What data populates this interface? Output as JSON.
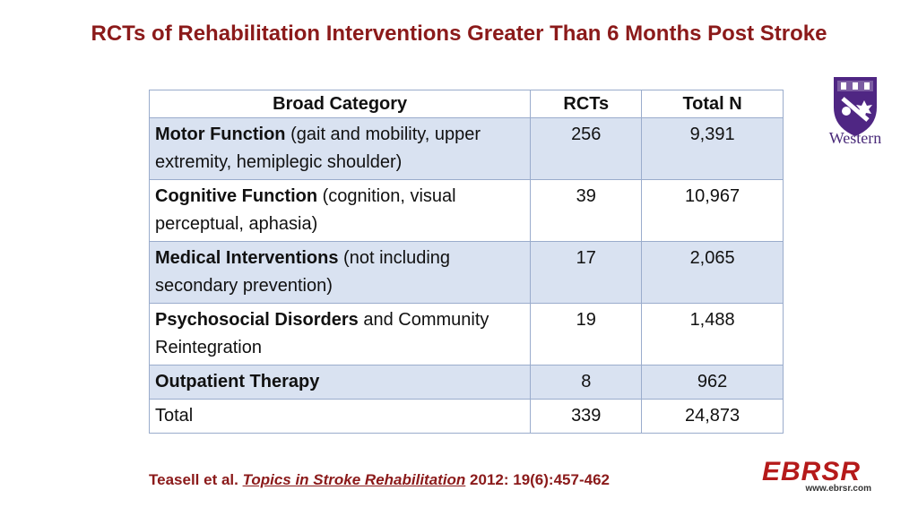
{
  "title": "RCTs of Rehabilitation Interventions Greater Than 6 Months Post Stroke",
  "table": {
    "headers": [
      "Broad Category",
      "RCTs",
      "Total N"
    ],
    "rows": [
      {
        "bold": "Motor Function",
        "rest": " (gait and mobility, upper extremity, hemiplegic shoulder)",
        "rcts": "256",
        "total_n": "9,391"
      },
      {
        "bold": "Cognitive Function",
        "rest": " (cognition, visual perceptual, aphasia)",
        "rcts": "39",
        "total_n": "10,967"
      },
      {
        "bold": "Medical Interventions",
        "rest": " (not including secondary prevention)",
        "rcts": "17",
        "total_n": "2,065"
      },
      {
        "bold": "Psychosocial Disorders",
        "rest": " and Community Reintegration",
        "rcts": "19",
        "total_n": "1,488"
      },
      {
        "bold": "Outpatient Therapy",
        "rest": "",
        "rcts": "8",
        "total_n": "962"
      },
      {
        "bold": "",
        "rest": "Total",
        "rcts": "339",
        "total_n": "24,873"
      }
    ]
  },
  "logo": {
    "name": "Western"
  },
  "citation": {
    "authors": "Teasell et al. ",
    "journal": "Topics in Stroke Rehabilitation",
    "details": " 2012: 19(6):457-462"
  },
  "ebrsr": {
    "word": "EBRSR",
    "url": "www.ebrsr.com"
  },
  "colors": {
    "title": "#8b1a1a",
    "row_shade": "#d9e2f1",
    "logo_purple": "#4f2683",
    "ebrsr_red": "#b51a1a"
  }
}
